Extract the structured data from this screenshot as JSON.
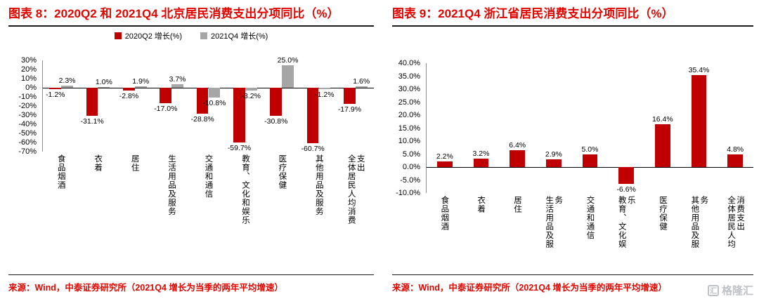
{
  "colors": {
    "accent_red": "#e10600",
    "bar_red": "#c00000",
    "bar_gray": "#a6a6a6",
    "rule_black": "#1a1a1a"
  },
  "watermark": {
    "text": "格隆汇",
    "logo_glyph": "汇"
  },
  "panels": [
    {
      "title": "图表 8：2020Q2 和 2021Q4 北京居民消费支出分项同比（%）",
      "source": "来源：Wind，中泰证券研究所（2021Q4 增长为当季的两年平均增速）"
    },
    {
      "title": "图表 9：2021Q4 浙江省居民消费支出分项同比（%）",
      "source": "来源：Wind，中泰证券研究所（2021Q4 增长为当季的两年平均增速）"
    }
  ],
  "chart_data": [
    {
      "type": "bar",
      "title": "2020Q2 和 2021Q4 北京居民消费支出分项同比（%）",
      "legend": true,
      "legend_position": "top",
      "grid": false,
      "ylim": [
        -70,
        30
      ],
      "yticks": [
        {
          "value": 30,
          "label": "30%"
        },
        {
          "value": 20,
          "label": "20%"
        },
        {
          "value": 10,
          "label": "10%"
        },
        {
          "value": 0,
          "label": "0%"
        },
        {
          "value": -10,
          "label": "-10%"
        },
        {
          "value": -20,
          "label": "-20%"
        },
        {
          "value": -30,
          "label": "-30%"
        },
        {
          "value": -40,
          "label": "-40%"
        },
        {
          "value": -50,
          "label": "-50%"
        },
        {
          "value": -60,
          "label": "-60%"
        },
        {
          "value": -70,
          "label": "-70%"
        }
      ],
      "categories": [
        "食品烟酒",
        "衣着",
        "居住",
        "生活用品及服务",
        "交通和通信",
        "教育、文化和娱乐",
        "医疗保健",
        "其他用品及服务",
        "全体居民人均消费支出"
      ],
      "series": [
        {
          "name": "2020Q2 增长(%)",
          "color": "#c00000",
          "values": [
            -1.2,
            -31.1,
            -2.8,
            -17.0,
            -28.8,
            -59.7,
            -30.8,
            -60.7,
            -17.9
          ],
          "labels": [
            "-1.2%",
            "-31.1%",
            "-2.8%",
            "-17.0%",
            "-28.8%",
            "-59.7%",
            "-30.8%",
            "-60.7%",
            "-17.9%"
          ]
        },
        {
          "name": "2021Q4 增长(%)",
          "color": "#a6a6a6",
          "values": [
            2.3,
            1.0,
            1.9,
            3.7,
            -10.8,
            -3.2,
            25.0,
            -1.2,
            1.6
          ],
          "labels": [
            "2.3%",
            "1.0%",
            "1.9%",
            "3.7%",
            "-10.8%",
            "-3.2%",
            "25.0%",
            "-1.2%",
            "1.6%"
          ]
        }
      ]
    },
    {
      "type": "bar",
      "title": "2021Q4 浙江省居民消费支出分项同比（%）",
      "legend": false,
      "grid": false,
      "ylim": [
        -10,
        40
      ],
      "yticks": [
        {
          "value": 40,
          "label": "40.0%"
        },
        {
          "value": 35,
          "label": "35.0%"
        },
        {
          "value": 30,
          "label": "30.0%"
        },
        {
          "value": 25,
          "label": "25.0%"
        },
        {
          "value": 20,
          "label": "20.0%"
        },
        {
          "value": 15,
          "label": "15.0%"
        },
        {
          "value": 10,
          "label": "10.0%"
        },
        {
          "value": 5,
          "label": "5.0%"
        },
        {
          "value": 0,
          "label": "0.0%"
        },
        {
          "value": -5,
          "label": "-5.0%"
        },
        {
          "value": -10,
          "label": "-10.0%"
        }
      ],
      "categories": [
        "食品烟酒",
        "衣着",
        "居住",
        "生活用品及服务",
        "交通和通信",
        "教育、文化娱乐",
        "医疗保健",
        "其他用品及服务",
        "全体居民人均消费支出"
      ],
      "series": [
        {
          "name": "2021Q4 增长(%)",
          "color": "#c00000",
          "values": [
            2.2,
            3.2,
            6.4,
            2.9,
            5.0,
            -6.6,
            16.4,
            35.4,
            4.8
          ],
          "labels": [
            "2.2%",
            "3.2%",
            "6.4%",
            "2.9%",
            "5.0%",
            "-6.6%",
            "16.4%",
            "35.4%",
            "4.8%"
          ]
        }
      ]
    }
  ]
}
